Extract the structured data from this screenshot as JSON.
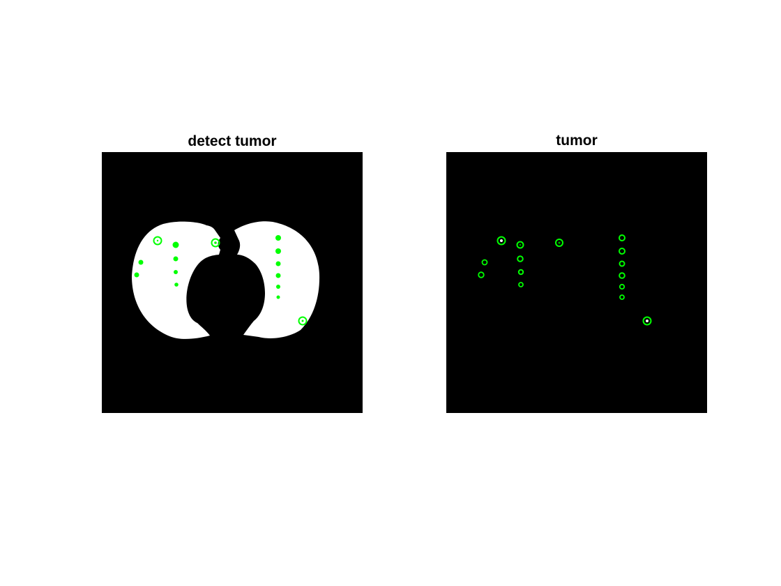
{
  "figure": {
    "background_color": "#ffffff",
    "marker_color": "#00ff00"
  },
  "panels": [
    {
      "title": "detect tumor",
      "image": "binary lung mask with detected tumor markers",
      "background_color": "#000000",
      "foreground_color": "#ffffff"
    },
    {
      "title": "tumor",
      "image": "detected tumor markers only",
      "background_color": "#000000"
    }
  ]
}
